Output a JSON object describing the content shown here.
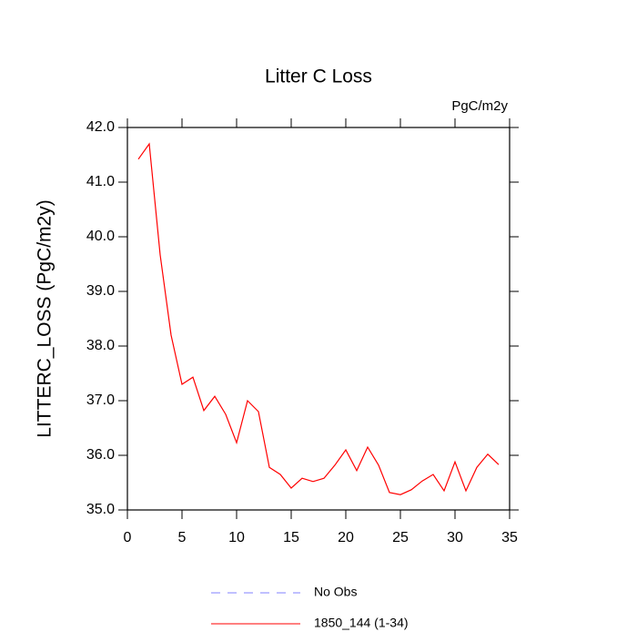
{
  "chart_data": {
    "type": "line",
    "title": "Litter C Loss",
    "units": "PgC/m2y",
    "ylabel": "LITTERC_LOSS  (PgC/m2y)",
    "x": [
      1,
      2,
      3,
      4,
      5,
      6,
      7,
      8,
      9,
      10,
      11,
      12,
      13,
      14,
      15,
      16,
      17,
      18,
      19,
      20,
      21,
      22,
      23,
      24,
      25,
      26,
      27,
      28,
      29,
      30,
      31,
      32,
      33,
      34
    ],
    "series": [
      {
        "name": "No Obs",
        "color": "#8080ff",
        "dashed": true,
        "values": [
          null,
          null,
          null,
          null,
          null,
          null,
          null,
          null,
          null,
          null,
          null,
          null,
          null,
          null,
          null,
          null,
          null,
          null,
          null,
          null,
          null,
          null,
          null,
          null,
          null,
          null,
          null,
          null,
          null,
          null,
          null,
          null,
          null,
          null
        ]
      },
      {
        "name": "1850_144 (1-34)",
        "color": "#ff0000",
        "dashed": false,
        "values": [
          41.42,
          41.7,
          39.67,
          38.2,
          37.3,
          37.43,
          36.82,
          37.08,
          36.75,
          36.23,
          37.0,
          36.8,
          35.78,
          35.65,
          35.4,
          35.58,
          35.52,
          35.58,
          35.82,
          36.1,
          35.72,
          36.15,
          35.82,
          35.32,
          35.28,
          35.37,
          35.53,
          35.65,
          35.35,
          35.88,
          35.35,
          35.78,
          36.02,
          35.83
        ]
      }
    ],
    "xlim": [
      0,
      35
    ],
    "xticks": [
      0,
      5,
      10,
      15,
      20,
      25,
      30,
      35
    ],
    "ylim": [
      35,
      42
    ],
    "yticks": [
      {
        "value": 35,
        "label": "35.0"
      },
      {
        "value": 36,
        "label": "36.0"
      },
      {
        "value": 37,
        "label": "37.0"
      },
      {
        "value": 38,
        "label": "38.0"
      },
      {
        "value": 39,
        "label": "39.0"
      },
      {
        "value": 40,
        "label": "40.0"
      },
      {
        "value": 41,
        "label": "41.0"
      },
      {
        "value": 42,
        "label": "42.0"
      }
    ]
  }
}
